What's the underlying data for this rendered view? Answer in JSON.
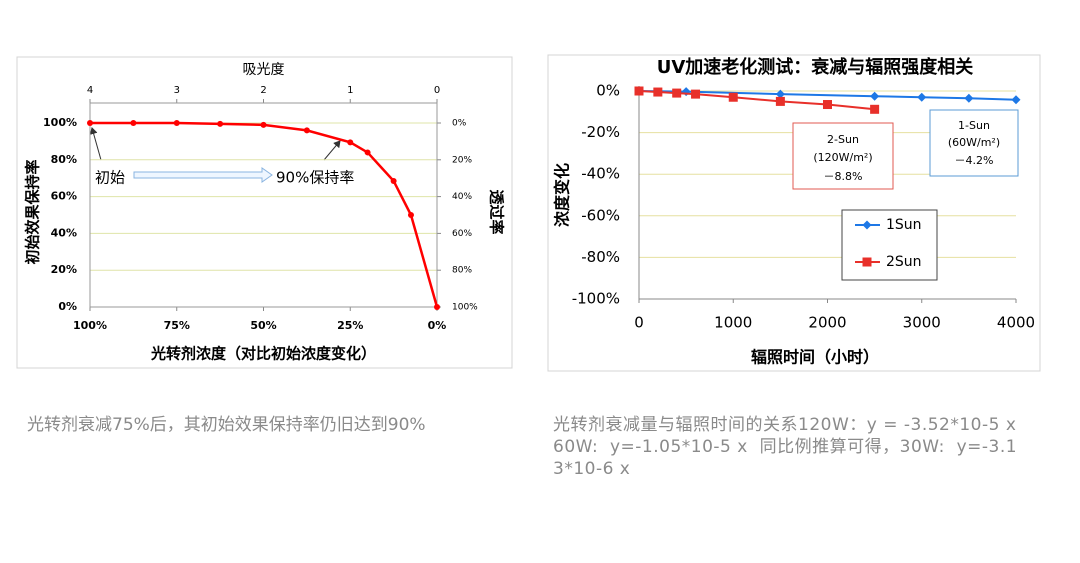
{
  "chart_data": [
    {
      "type": "line",
      "xlabel": "光转剂浓度（对比初始浓度变化）",
      "x2label": "吸光度",
      "ylabel": "初始效果保持率",
      "y2label": "透过率",
      "x": [
        100,
        87.5,
        75,
        62.5,
        50,
        37.5,
        25,
        20,
        12.5,
        7.5,
        0
      ],
      "values": [
        100,
        100,
        100,
        99.5,
        99,
        96,
        89.5,
        84,
        68.5,
        50,
        0
      ],
      "color": "#ff0000",
      "xlim": [
        100,
        0
      ],
      "xticks": [
        {
          "value": 100,
          "label": "100%"
        },
        {
          "value": 75,
          "label": "75%"
        },
        {
          "value": 50,
          "label": "50%"
        },
        {
          "value": 25,
          "label": "25%"
        },
        {
          "value": 0,
          "label": "0%"
        }
      ],
      "x2lim": [
        4,
        0
      ],
      "x2ticks": [
        4,
        3,
        2,
        1,
        0
      ],
      "ylim": [
        0,
        100
      ],
      "yticks": [
        {
          "value": 0,
          "label": "0%"
        },
        {
          "value": 20,
          "label": "20%"
        },
        {
          "value": 40,
          "label": "40%"
        },
        {
          "value": 60,
          "label": "60%"
        },
        {
          "value": 80,
          "label": "80%"
        },
        {
          "value": 100,
          "label": "100%"
        }
      ],
      "y2lim": [
        100,
        0
      ],
      "y2ticks": [
        {
          "value": 0,
          "label": "0%"
        },
        {
          "value": 20,
          "label": "20%"
        },
        {
          "value": 40,
          "label": "40%"
        },
        {
          "value": 60,
          "label": "60%"
        },
        {
          "value": 80,
          "label": "80%"
        },
        {
          "value": 100,
          "label": "100%"
        }
      ],
      "annotations": [
        "初始",
        "90%保持率"
      ],
      "grid": true
    },
    {
      "type": "line",
      "title": "UV加速老化测试：衰减与辐照强度相关",
      "xlabel": "辐照时间（小时）",
      "ylabel": "浓度变化",
      "series": [
        {
          "name": "1Sun",
          "color": "#1e78e6",
          "x": [
            0,
            500,
            1500,
            2500,
            3000,
            3500,
            4000
          ],
          "values": [
            0,
            -0.3,
            -1.5,
            -2.5,
            -3,
            -3.5,
            -4.2
          ]
        },
        {
          "name": "2Sun",
          "color": "#e8302a",
          "x": [
            0,
            200,
            400,
            600,
            1000,
            1500,
            2000,
            2500
          ],
          "values": [
            0,
            -0.5,
            -1,
            -1.5,
            -3,
            -5,
            -6.5,
            -8.8
          ]
        }
      ],
      "xlim": [
        0,
        4000
      ],
      "xticks": [
        0,
        1000,
        2000,
        3000,
        4000
      ],
      "ylim": [
        -100,
        0
      ],
      "yticks": [
        {
          "value": 0,
          "label": "0%"
        },
        {
          "value": -20,
          "label": "-20%"
        },
        {
          "value": -40,
          "label": "-40%"
        },
        {
          "value": -60,
          "label": "-60%"
        },
        {
          "value": -80,
          "label": "-80%"
        },
        {
          "value": -100,
          "label": "-100%"
        }
      ],
      "annotations": [
        {
          "lines": [
            "2-Sun",
            "(120W/m²)",
            "－8.8%"
          ],
          "color": "#e05a50"
        },
        {
          "lines": [
            "1-Sun",
            "(60W/m²)",
            "－4.2%"
          ],
          "color": "#5b9bd5"
        }
      ],
      "legend": "right",
      "grid": true
    }
  ],
  "captions": [
    "光转剂衰减75%后，其初始效果保持率仍旧达到90%",
    "光转剂衰减量与辐照时间的关系120W：y = -3.52*10-5 x    60W:  y=-1.05*10-5 x  同比例推算可得，30W:  y=-3.13*10-6 x"
  ]
}
